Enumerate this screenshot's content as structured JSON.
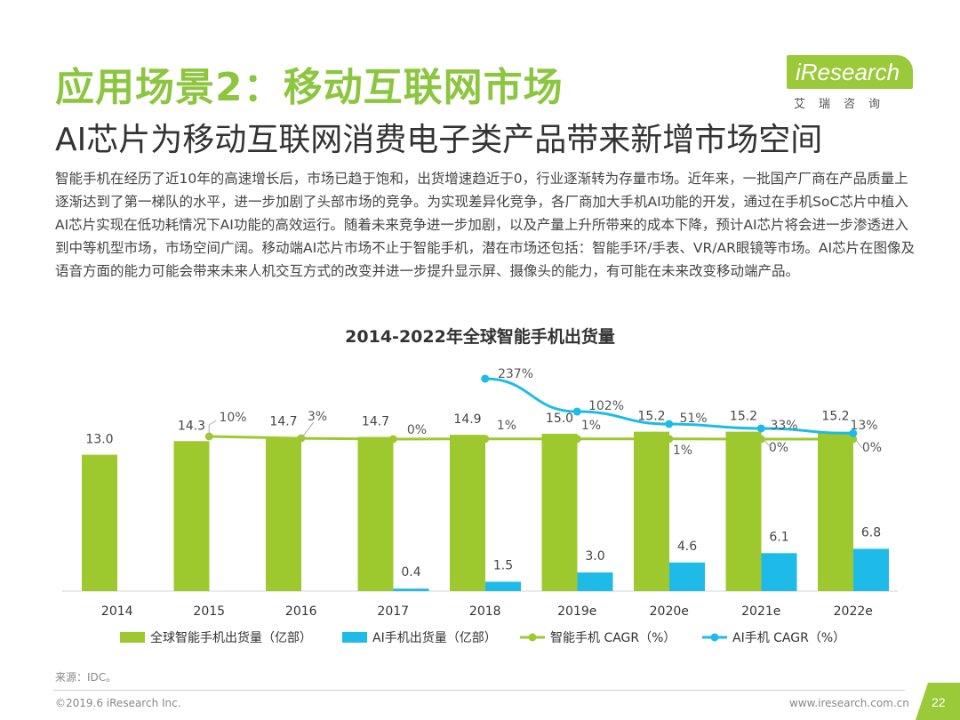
{
  "header": {
    "title": "应用场景2：移动互联网市场",
    "subtitle": "AI芯片为移动互联网消费电子类产品带来新增市场空间"
  },
  "brand": {
    "logo_text": "iResearch",
    "logo_sub": "艾瑞咨询",
    "accent_color": "#8cc63f"
  },
  "body": {
    "paragraph": "智能手机在经历了近10年的高速增长后，市场已趋于饱和，出货增速趋近于0，行业逐渐转为存量市场。近年来，一批国产厂商在产品质量上逐渐达到了第一梯队的水平，进一步加剧了头部市场的竞争。为实现差异化竞争，各厂商加大手机AI功能的开发，通过在手机SoC芯片中植入AI芯片实现在低功耗情况下AI功能的高效运行。随着未来竞争进一步加剧，以及产量上升所带来的成本下降，预计AI芯片将会进一步渗透进入到中等机型市场，市场空间广阔。移动端AI芯片市场不止于智能手机，潜在市场还包括：智能手环/手表、VR/AR眼镜等市场。AI芯片在图像及语音方面的能力可能会带来未来人机交互方式的改变并进一步提升显示屏、摄像头的能力，有可能在未来改变移动端产品。"
  },
  "chart_data": {
    "type": "bar",
    "title": "2014-2022年全球智能手机出货量",
    "categories": [
      "2014",
      "2015",
      "2016",
      "2017",
      "2018",
      "2019e",
      "2020e",
      "2021e",
      "2022e"
    ],
    "series": [
      {
        "name": "全球智能手机出货量（亿部）",
        "kind": "bar",
        "color": "#9dc92f",
        "values": [
          13.0,
          14.3,
          14.7,
          14.7,
          14.9,
          15.0,
          15.2,
          15.2,
          15.2
        ],
        "labels": [
          "13.0",
          "14.3",
          "14.7",
          "14.7",
          "14.9",
          "15.0",
          "15.2",
          "15.2",
          "15.2"
        ]
      },
      {
        "name": "AI手机出货量（亿部）",
        "kind": "bar",
        "color": "#1ebbe8",
        "values": [
          null,
          null,
          null,
          0.4,
          1.5,
          3.0,
          4.6,
          6.1,
          6.8
        ],
        "labels": [
          "",
          "",
          "",
          "0.4",
          "1.5",
          "3.0",
          "4.6",
          "6.1",
          "6.8"
        ]
      },
      {
        "name": "智能手机 CAGR（%）",
        "kind": "line",
        "color": "#9dc92f",
        "values": [
          null,
          10,
          3,
          0,
          1,
          1,
          1,
          0,
          0
        ],
        "labels": [
          "",
          "10%",
          "3%",
          "0%",
          "1%",
          "1%",
          "1%",
          "0%",
          "0%"
        ]
      },
      {
        "name": "AI手机 CAGR（%）",
        "kind": "line",
        "color": "#1ebbe8",
        "values": [
          null,
          null,
          null,
          null,
          237,
          102,
          51,
          33,
          13
        ],
        "labels": [
          "",
          "",
          "",
          "",
          "237%",
          "102%",
          "51%",
          "33%",
          "13%"
        ]
      }
    ],
    "ylim": [
      0,
      16
    ],
    "y2lim": [
      0,
      250
    ],
    "grid": false,
    "legend": "bottom"
  },
  "footer": {
    "source": "来源：IDC。",
    "copyright": "©2019.6 iResearch Inc.",
    "website": "www.iresearch.com.cn",
    "page": "22"
  }
}
